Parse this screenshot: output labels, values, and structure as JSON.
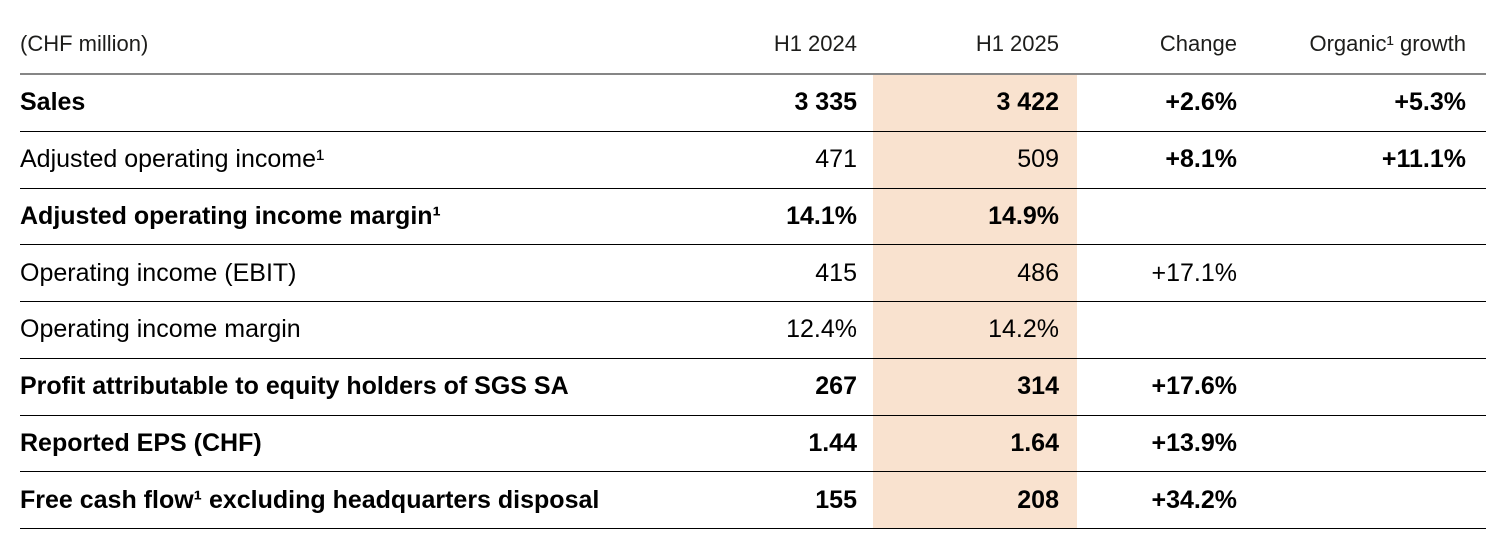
{
  "colors": {
    "highlight_column_bg": "#f9e2cf",
    "header_rule": "#868686",
    "row_rule": "#000000",
    "text": "#000000"
  },
  "table": {
    "unit_label": "(CHF million)",
    "columns": {
      "h1_2024": "H1 2024",
      "h1_2025": "H1 2025",
      "change": "Change",
      "organic_growth": "Organic¹ growth"
    },
    "rows": [
      {
        "label": "Sales",
        "h1_2024": "3 335",
        "h1_2025": "3 422",
        "change": "+2.6%",
        "organic_growth": "+5.3%"
      },
      {
        "label": "Adjusted operating income¹",
        "h1_2024": "471",
        "h1_2025": "509",
        "change": "+8.1%",
        "organic_growth": "+11.1%"
      },
      {
        "label": "Adjusted operating income margin¹",
        "h1_2024": "14.1%",
        "h1_2025": "14.9%",
        "change": "",
        "organic_growth": ""
      },
      {
        "label": "Operating income (EBIT)",
        "h1_2024": "415",
        "h1_2025": "486",
        "change": "+17.1%",
        "organic_growth": ""
      },
      {
        "label": "Operating income margin",
        "h1_2024": "12.4%",
        "h1_2025": "14.2%",
        "change": "",
        "organic_growth": ""
      },
      {
        "label": "Profit attributable to equity holders of SGS SA",
        "h1_2024": "267",
        "h1_2025": "314",
        "change": "+17.6%",
        "organic_growth": ""
      },
      {
        "label": "Reported EPS (CHF)",
        "h1_2024": "1.44",
        "h1_2025": "1.64",
        "change": "+13.9%",
        "organic_growth": ""
      },
      {
        "label": "Free cash flow¹ excluding headquarters disposal",
        "h1_2024": "155",
        "h1_2025": "208",
        "change": "+34.2%",
        "organic_growth": ""
      }
    ]
  }
}
